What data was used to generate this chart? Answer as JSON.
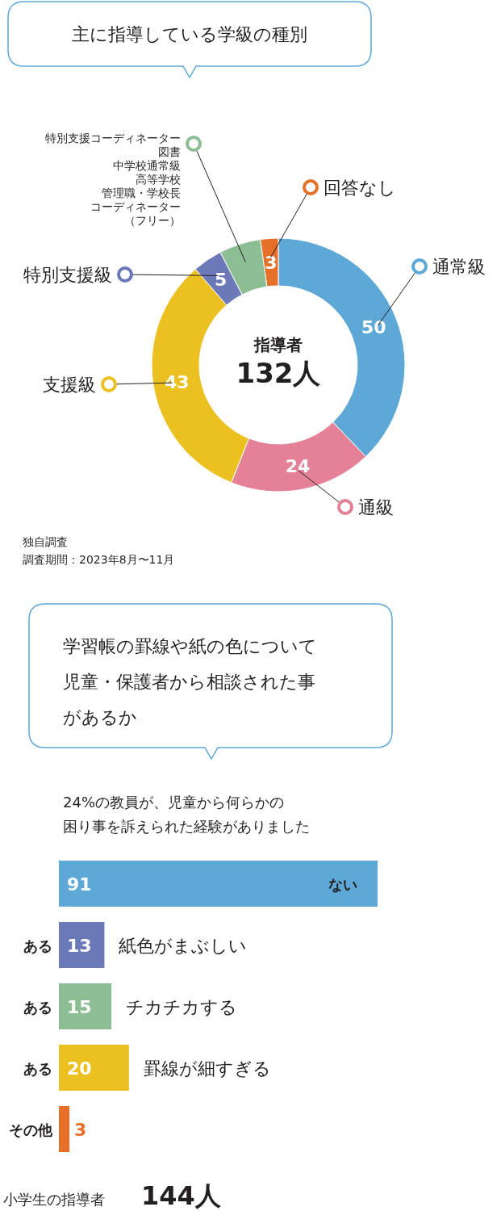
{
  "chart_data": [
    {
      "type": "donut",
      "title": "主に指導している学級の種別",
      "categories": [
        "通常級",
        "通級",
        "支援級",
        "特別支援級",
        "特別支援コーディネーター図書中学校通常級高等学校管理職・学校長コーディネーター（フリー）",
        "回答なし"
      ],
      "legend": "right",
      "values": [
        50,
        24,
        43,
        5,
        7,
        3
      ],
      "value_labels": [
        "50",
        "24",
        "43",
        "5",
        null,
        "3"
      ],
      "colors": [
        "#5ea8d8",
        "#e48197",
        "#ecc021",
        "#6b79b8",
        "#8dbd93",
        "#e6702a"
      ],
      "annotations": [
        "指導者",
        "132人",
        "独自調査",
        "調査期間：2023年8月〜11月"
      ]
    },
    {
      "type": "bar",
      "orientation": "horizontal",
      "title": "学習帳の罫線や紙の色について児童・保護者から相談された事があるか",
      "subtitle": "24%の教員が、児童から何らかの困り事を訴えられた経験がありました",
      "categories": [
        "ない",
        "紙色がまぶしい",
        "チカチカする",
        "罫線が細すぎる",
        "その他"
      ],
      "values": [
        91,
        13,
        15,
        20,
        3
      ],
      "colors": [
        "#5ea8d8",
        "#6b79b8",
        "#8dbd93",
        "#ecc021",
        "#e6702a"
      ],
      "data_labels": true,
      "annotations": [
        "ある",
        "ある",
        "ある",
        "小学生の指導者",
        "144人"
      ]
    }
  ]
}
